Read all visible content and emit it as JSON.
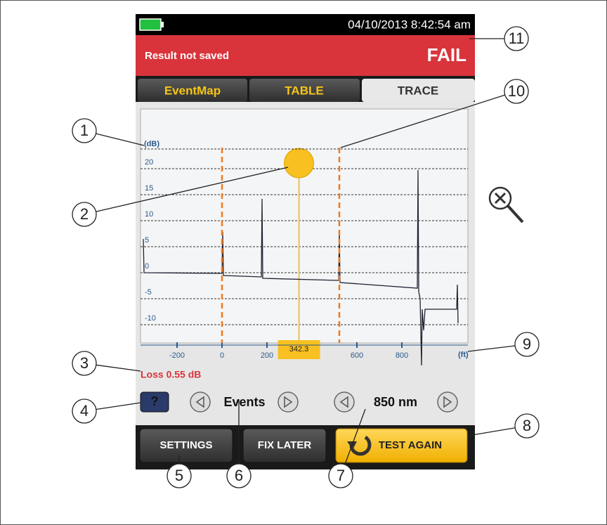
{
  "status": {
    "datetime": "04/10/2013 8:42:54 am"
  },
  "header": {
    "message": "Result not saved",
    "result": "FAIL"
  },
  "tabs": [
    "EventMap",
    "TABLE",
    "TRACE"
  ],
  "trace": {
    "y_unit": "(dB)",
    "yticks": [
      20,
      15,
      10,
      5,
      0,
      -5,
      -10
    ],
    "x_unit": "(ft)",
    "xticks": [
      -200,
      0,
      200,
      600,
      800
    ],
    "cursor": 342.3
  },
  "loss": "Loss 0.55 dB",
  "help": "?",
  "nav": [
    "Events",
    "850 nm"
  ],
  "buttons": [
    "SETTINGS",
    "FIX LATER",
    "TEST AGAIN"
  ],
  "callouts": [
    "1",
    "2",
    "3",
    "4",
    "5",
    "6",
    "7",
    "8",
    "9",
    "10",
    "11"
  ]
}
